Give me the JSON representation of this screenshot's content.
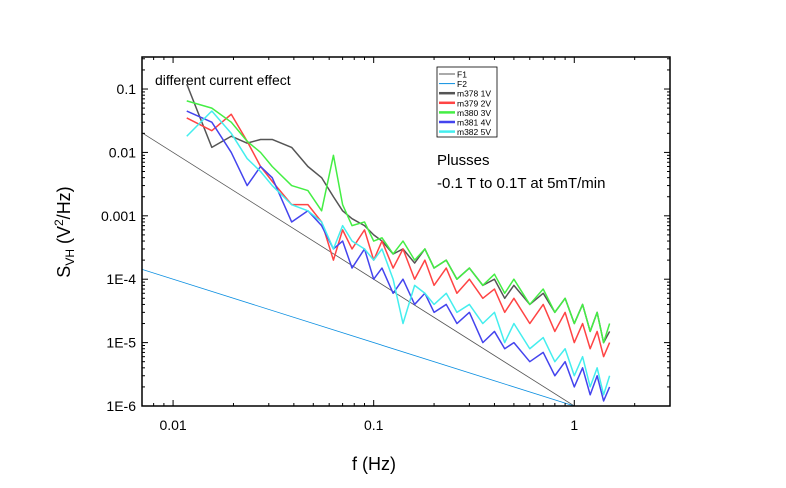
{
  "chart_data": {
    "type": "line",
    "xlabel": "f (Hz)",
    "ylabel": {
      "main": "S",
      "sub": "VH",
      "unit_pre": " (V",
      "sup": "2",
      "unit_post": "/Hz)"
    },
    "xscale": "log",
    "yscale": "log",
    "xlim": [
      0.007,
      3
    ],
    "ylim": [
      1e-06,
      0.32
    ],
    "xticks": [
      {
        "v": 0.01,
        "label": "0.01"
      },
      {
        "v": 0.1,
        "label": "0.1"
      },
      {
        "v": 1,
        "label": "1"
      }
    ],
    "yticks": [
      {
        "v": 0.1,
        "label": "0.1"
      },
      {
        "v": 0.01,
        "label": "0.01"
      },
      {
        "v": 0.001,
        "label": "0.001"
      },
      {
        "v": 0.0001,
        "label": "1E-4"
      },
      {
        "v": 1e-05,
        "label": "1E-5"
      },
      {
        "v": 1e-06,
        "label": "1E-6"
      }
    ],
    "grid": false,
    "legend_position": "top-center",
    "annotations": [
      "different current effect",
      "Plusses",
      "-0.1 T to 0.1T at 5mT/min"
    ],
    "reference_lines": [
      {
        "name": "F1",
        "color": "#555555",
        "points": [
          [
            0.007,
            0.0204
          ],
          [
            1,
            1e-06
          ]
        ]
      },
      {
        "name": "F2",
        "color": "#0a8ee0",
        "points": [
          [
            0.007,
            0.000143
          ],
          [
            1,
            1e-06
          ]
        ]
      }
    ],
    "x": [
      0.0117,
      0.0156,
      0.0195,
      0.0234,
      0.0273,
      0.0312,
      0.039,
      0.047,
      0.055,
      0.063,
      0.07,
      0.078,
      0.09,
      0.1,
      0.11,
      0.125,
      0.14,
      0.16,
      0.18,
      0.2,
      0.23,
      0.26,
      0.3,
      0.35,
      0.4,
      0.45,
      0.5,
      0.6,
      0.7,
      0.8,
      0.9,
      1.0,
      1.1,
      1.2,
      1.3,
      1.4,
      1.5
    ],
    "series": [
      {
        "name": "m378",
        "note": "1V",
        "color": "#555555",
        "values": [
          0.12,
          0.012,
          0.018,
          0.014,
          0.016,
          0.016,
          0.012,
          0.006,
          0.004,
          0.002,
          0.0012,
          0.0009,
          0.0007,
          0.0005,
          0.0004,
          0.00025,
          0.0003,
          0.00018,
          0.0003,
          0.00015,
          0.0002,
          0.0001,
          0.00015,
          8e-05,
          0.0001,
          5e-05,
          8e-05,
          4e-05,
          6e-05,
          3e-05,
          5e-05,
          2e-05,
          4e-05,
          1.5e-05,
          3e-05,
          1e-05,
          1.5e-05
        ]
      },
      {
        "name": "m379",
        "note": "2V",
        "color": "#ff4444",
        "values": [
          0.035,
          0.022,
          0.04,
          0.015,
          0.006,
          0.0035,
          0.0015,
          0.0015,
          0.0008,
          0.0002,
          0.0006,
          0.0003,
          0.0006,
          0.0002,
          0.0004,
          0.00015,
          0.0003,
          0.0001,
          0.0002,
          8e-05,
          0.00015,
          6e-05,
          0.0001,
          5e-05,
          7e-05,
          3e-05,
          5e-05,
          2e-05,
          4e-05,
          1.5e-05,
          3e-05,
          1e-05,
          2e-05,
          8e-06,
          1.5e-05,
          6e-06,
          1e-05
        ]
      },
      {
        "name": "m380",
        "note": "3V",
        "color": "#44ee44",
        "values": [
          0.065,
          0.05,
          0.03,
          0.015,
          0.01,
          0.006,
          0.003,
          0.0025,
          0.0012,
          0.009,
          0.0015,
          0.0007,
          0.0008,
          0.0004,
          0.00045,
          0.00025,
          0.0004,
          0.0002,
          0.0003,
          0.00015,
          0.0002,
          0.0001,
          0.00015,
          8e-05,
          0.00012,
          6e-05,
          0.0001,
          4e-05,
          7e-05,
          3e-05,
          5e-05,
          2e-05,
          4e-05,
          1.5e-05,
          3e-05,
          1e-05,
          2e-05
        ]
      },
      {
        "name": "m381",
        "note": "4V",
        "color": "#4444ee",
        "values": [
          0.045,
          0.03,
          0.01,
          0.003,
          0.006,
          0.004,
          0.0008,
          0.0012,
          0.0007,
          0.0003,
          0.0004,
          0.00015,
          0.0003,
          0.0001,
          0.00015,
          6e-05,
          0.0001,
          4e-05,
          6e-05,
          3e-05,
          4e-05,
          2e-05,
          3e-05,
          1e-05,
          1.5e-05,
          8e-06,
          1e-05,
          5e-06,
          7e-06,
          3e-06,
          5e-06,
          2e-06,
          4e-06,
          1.5e-06,
          3e-06,
          1.2e-06,
          2e-06
        ]
      },
      {
        "name": "m382",
        "note": "5V",
        "color": "#44eeee",
        "values": [
          0.018,
          0.045,
          0.02,
          0.008,
          0.005,
          0.003,
          0.0015,
          0.0012,
          0.0008,
          0.0003,
          0.0007,
          0.0004,
          0.0003,
          0.0002,
          0.0003,
          0.0001,
          2e-05,
          8e-05,
          6e-05,
          4e-05,
          6e-05,
          3e-05,
          4e-05,
          2e-05,
          3e-05,
          1e-05,
          2e-05,
          8e-06,
          1.2e-05,
          5e-06,
          8e-06,
          3e-06,
          6e-06,
          2e-06,
          4e-06,
          1.5e-06,
          3e-06
        ]
      }
    ]
  }
}
